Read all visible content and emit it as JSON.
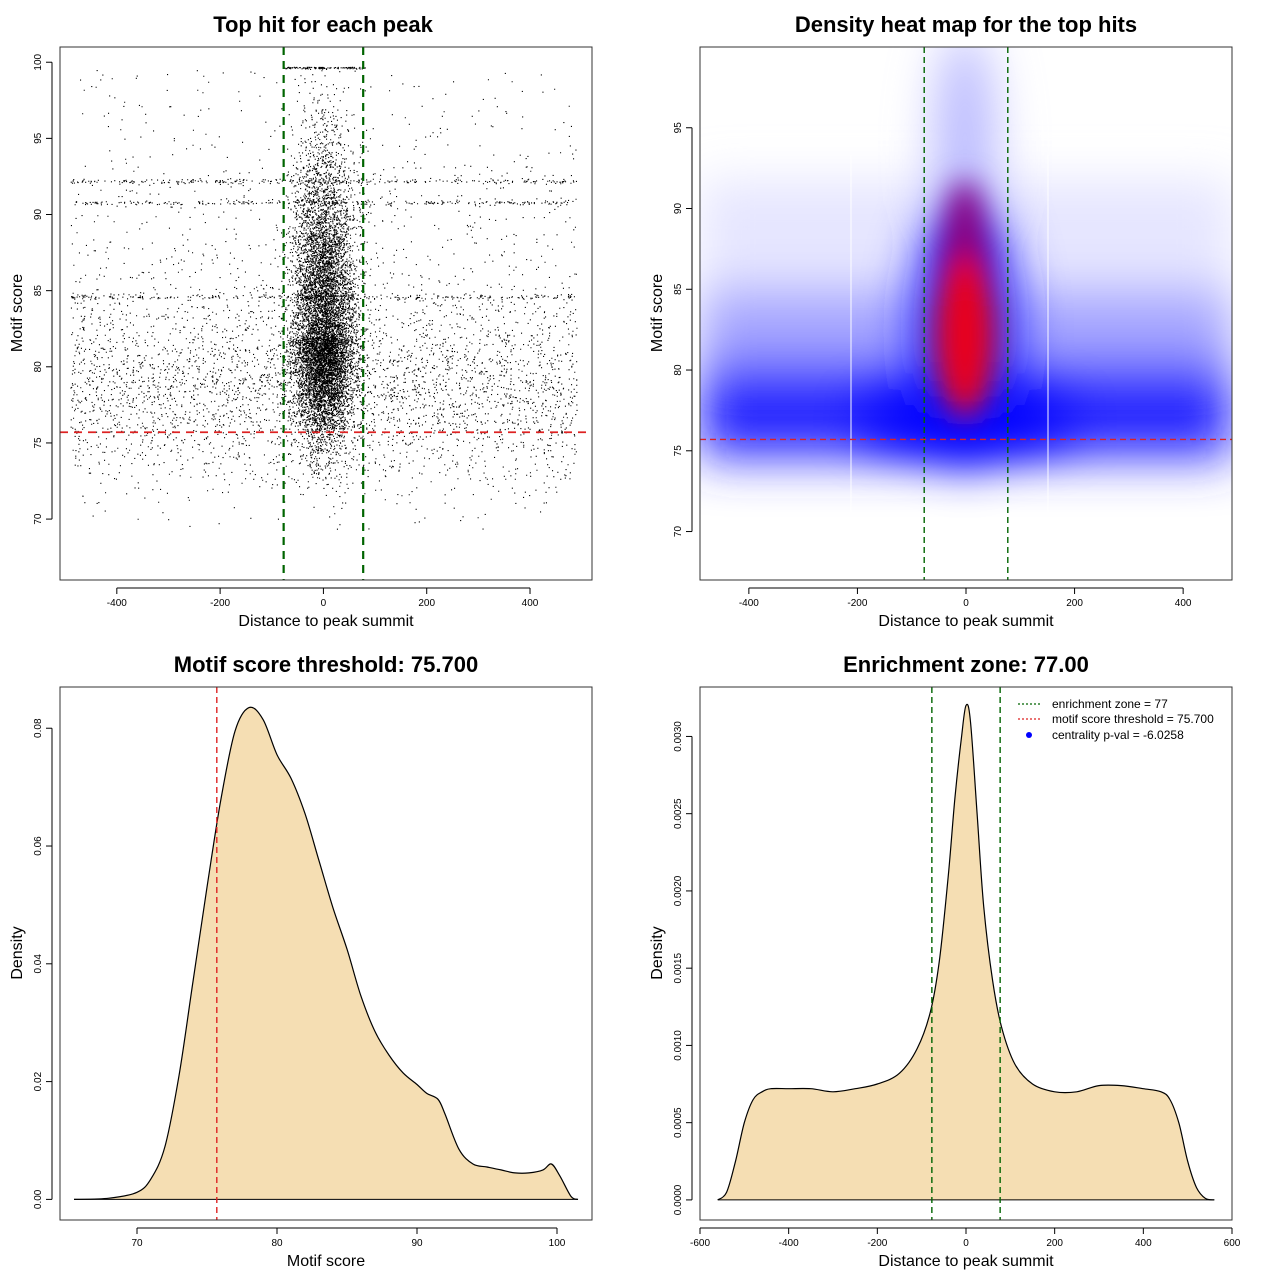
{
  "colors": {
    "green": "#006400",
    "red": "#dd2222",
    "fill": "#f5deb3",
    "blue": "#0000ff",
    "heat_red": "#e8001a"
  },
  "chart_data": [
    {
      "id": "scatter",
      "type": "scatter",
      "title": "Top hit for each peak",
      "xlabel": "Distance to peak summit",
      "ylabel": "Motif score",
      "xlim": [
        -510,
        520
      ],
      "ylim": [
        66,
        101
      ],
      "xticks": [
        -400,
        -200,
        0,
        200,
        400
      ],
      "yticks": [
        70,
        75,
        80,
        85,
        90,
        95,
        100
      ],
      "vlines": [
        -77,
        77
      ],
      "hline": 75.7,
      "x_range": [
        -490,
        490
      ],
      "y_range": [
        69,
        99.7
      ]
    },
    {
      "id": "heatmap",
      "type": "heatmap",
      "title": "Density heat map for the top hits",
      "xlabel": "Distance to peak summit",
      "ylabel": "Motif score",
      "xlim": [
        -490,
        490
      ],
      "ylim": [
        67,
        100
      ],
      "xticks": [
        -400,
        -200,
        0,
        200,
        400
      ],
      "yticks": [
        70,
        75,
        80,
        85,
        90,
        95
      ],
      "vlines": [
        -77,
        77
      ],
      "hline": 75.7,
      "hotspot_center": [
        0,
        83
      ]
    },
    {
      "id": "score_density",
      "type": "area",
      "title": "Motif score threshold: 75.700",
      "xlabel": "Motif score",
      "ylabel": "Density",
      "xlim": [
        64.5,
        102.5
      ],
      "ylim": [
        -0.0035,
        0.087
      ],
      "xticks": [
        70,
        80,
        90,
        100
      ],
      "yticks": [
        0.0,
        0.02,
        0.04,
        0.06,
        0.08
      ],
      "ytick_labels": [
        "0.00",
        "0.02",
        "0.04",
        "0.06",
        "0.08"
      ],
      "vline": 75.7,
      "x": [
        65.5,
        68,
        70,
        71,
        72,
        73,
        74,
        75,
        76,
        77,
        78,
        79,
        80,
        81,
        82,
        83,
        84,
        85,
        86,
        87,
        88,
        89,
        90,
        90.7,
        91.5,
        92,
        93,
        94,
        95,
        96,
        97,
        98,
        99,
        99.6,
        100.2,
        101,
        101.5
      ],
      "y": [
        0.0,
        0.0002,
        0.0012,
        0.0035,
        0.009,
        0.021,
        0.037,
        0.053,
        0.068,
        0.0795,
        0.0835,
        0.0815,
        0.0755,
        0.0715,
        0.0655,
        0.0575,
        0.0495,
        0.0425,
        0.0345,
        0.0285,
        0.0245,
        0.0215,
        0.0195,
        0.018,
        0.017,
        0.0145,
        0.0085,
        0.006,
        0.0055,
        0.005,
        0.0045,
        0.0045,
        0.005,
        0.006,
        0.004,
        0.0005,
        0.0
      ]
    },
    {
      "id": "distance_density",
      "type": "area",
      "title": "Enrichment zone: 77.00",
      "xlabel": "Distance to peak summit",
      "ylabel": "Density",
      "xlim": [
        -600,
        600
      ],
      "ylim": [
        -0.00013,
        0.00332
      ],
      "xticks": [
        -600,
        -400,
        -200,
        0,
        200,
        400,
        600
      ],
      "yticks": [
        0.0,
        0.0005,
        0.001,
        0.0015,
        0.002,
        0.0025,
        0.003
      ],
      "ytick_labels": [
        "0.0000",
        "0.0005",
        "0.0010",
        "0.0015",
        "0.0020",
        "0.0025",
        "0.0030"
      ],
      "vlines": [
        -77,
        77
      ],
      "x": [
        -560,
        -540,
        -520,
        -500,
        -480,
        -460,
        -440,
        -400,
        -350,
        -300,
        -250,
        -200,
        -150,
        -110,
        -80,
        -60,
        -40,
        -25,
        -10,
        0,
        10,
        25,
        40,
        60,
        80,
        110,
        150,
        200,
        250,
        300,
        350,
        400,
        440,
        460,
        480,
        500,
        520,
        540,
        560
      ],
      "y": [
        0.0,
        5e-05,
        0.00025,
        0.0005,
        0.00065,
        0.0007,
        0.00072,
        0.00072,
        0.00072,
        0.0007,
        0.00072,
        0.00075,
        0.00082,
        0.00098,
        0.00122,
        0.00155,
        0.0021,
        0.0026,
        0.003,
        0.0032,
        0.0031,
        0.0025,
        0.0019,
        0.00142,
        0.00112,
        0.00088,
        0.00075,
        0.0007,
        0.0007,
        0.00074,
        0.00074,
        0.00072,
        0.0007,
        0.00065,
        0.0005,
        0.00025,
        8e-05,
        1e-05,
        0.0
      ],
      "legend": [
        {
          "label": "enrichment zone = 77",
          "kind": "dotted-line",
          "color": "#006400"
        },
        {
          "label": "motif score threshold = 75.700",
          "kind": "dotted-line",
          "color": "#dd2222"
        },
        {
          "label": "centrality p-val = -6.0258",
          "kind": "dot",
          "color": "#0000ff"
        }
      ]
    }
  ]
}
